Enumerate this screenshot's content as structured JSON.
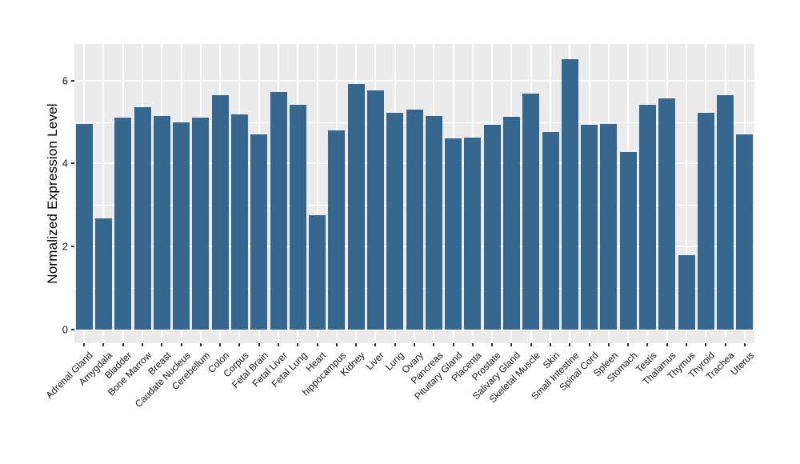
{
  "figure": {
    "ylabel": "Normalized Expression Level"
  },
  "chart_data": {
    "type": "bar",
    "title": "",
    "xlabel": "",
    "ylabel": "Normalized Expression Level",
    "categories": [
      "Adrenal Gland",
      "Amygdala",
      "Bladder",
      "Bone Marrow",
      "Breast",
      "Caudate Nucleus",
      "Cerebellum",
      "Colon",
      "Corpus",
      "Fetal Brain",
      "Fetal Liver",
      "Fetal Lung",
      "Heart",
      "hippocampus",
      "Kidney",
      "Liver",
      "Lung",
      "Ovary",
      "Pancreas",
      "Pituitary Gland",
      "Placenta",
      "Prostate",
      "Salivary Gland",
      "Skeletal Muscle",
      "Skin",
      "Small Intestine",
      "Spinal Cord",
      "Spleen",
      "Stomach",
      "Testis",
      "Thalamus",
      "Thymus",
      "Thyroid",
      "Trachea",
      "Uterus"
    ],
    "values": [
      4.95,
      2.67,
      5.1,
      5.36,
      5.14,
      4.99,
      5.1,
      5.64,
      5.18,
      4.71,
      5.72,
      5.41,
      2.75,
      4.8,
      5.92,
      5.77,
      5.22,
      5.31,
      5.14,
      4.61,
      4.62,
      4.93,
      5.13,
      5.68,
      4.77,
      6.52,
      4.93,
      4.96,
      4.28,
      5.41,
      5.58,
      1.79,
      5.22,
      5.65,
      4.7
    ],
    "yticks": [
      "0",
      "2",
      "4",
      "6"
    ],
    "ytick_values": [
      0,
      2,
      4,
      6
    ],
    "minor_gridline_values": [
      1,
      3,
      5
    ],
    "ylim": [
      -0.33,
      6.88
    ],
    "grid": "on",
    "legend": "none",
    "bar_width_fraction": 0.87,
    "colors": {
      "bar": "#36678E",
      "panel_background": "#EBEBEB",
      "gridline": "#FFFFFF",
      "axis_text": "#1A1A1A",
      "tick_mark": "#333333",
      "figure_background": "#FFFFFF"
    }
  }
}
